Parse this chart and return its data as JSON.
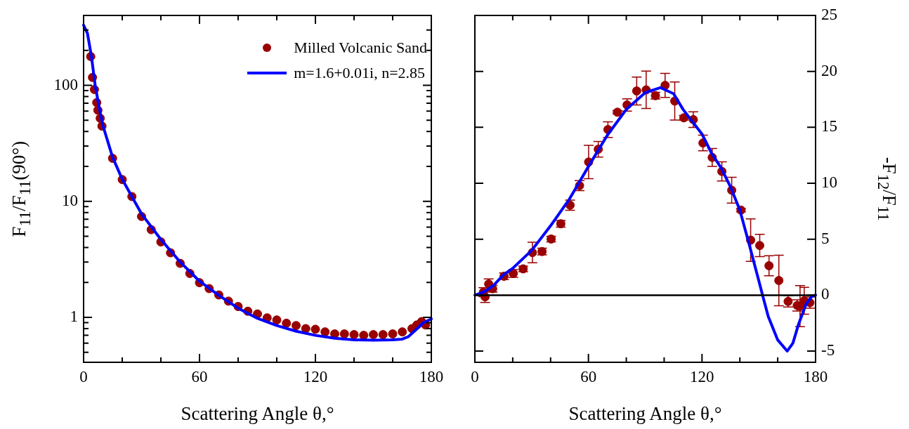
{
  "chart_data": [
    {
      "type": "scatter",
      "xlabel": "Scattering Angle θ,°",
      "ylabel": "F$_{11}$/F$_{11}$(90°)",
      "log": "y",
      "legend": "top right",
      "grid": false,
      "xlim": [
        0,
        180
      ],
      "xticks": [
        0,
        {
          "value": 20,
          "label": null
        },
        {
          "value": 40,
          "label": null
        },
        60,
        {
          "value": 80,
          "label": null
        },
        {
          "value": 100,
          "label": null
        },
        120,
        {
          "value": 140,
          "label": null
        },
        {
          "value": 160,
          "label": null
        },
        180
      ],
      "ylim": [
        0.41,
        400
      ],
      "yticks": [
        {
          "value": 0.5,
          "label": null
        },
        {
          "value": 0.6,
          "label": null
        },
        {
          "value": 0.7,
          "label": null
        },
        {
          "value": 0.8,
          "label": null
        },
        {
          "value": 0.9,
          "label": null
        },
        1,
        {
          "value": 2,
          "label": null
        },
        {
          "value": 3,
          "label": null
        },
        {
          "value": 4,
          "label": null
        },
        {
          "value": 5,
          "label": null
        },
        {
          "value": 6,
          "label": null
        },
        {
          "value": 7,
          "label": null
        },
        {
          "value": 8,
          "label": null
        },
        {
          "value": 9,
          "label": null
        },
        10,
        {
          "value": 20,
          "label": null
        },
        {
          "value": 30,
          "label": null
        },
        {
          "value": 40,
          "label": null
        },
        {
          "value": 50,
          "label": null
        },
        {
          "value": 60,
          "label": null
        },
        {
          "value": 70,
          "label": null
        },
        {
          "value": 80,
          "label": null
        },
        {
          "value": 90,
          "label": null
        },
        100,
        {
          "value": 200,
          "label": null
        },
        {
          "value": 300,
          "label": null
        }
      ],
      "series": [
        {
          "name": "Milled Volcanic Sand",
          "marker": "circle",
          "color": "#990000",
          "x": [
            3.7,
            4.6,
            5.6,
            6.8,
            7.4,
            8.6,
            9.5,
            15,
            20,
            25,
            30,
            35,
            40,
            45,
            50,
            55,
            60,
            65,
            70,
            75,
            80,
            85,
            90,
            95,
            100,
            105,
            110,
            115,
            120,
            125,
            130,
            135,
            140,
            145,
            150,
            155,
            160,
            165,
            170,
            172.5,
            175,
            177
          ],
          "values": [
            177,
            117,
            92,
            71,
            61,
            52,
            44.5,
            23.5,
            15.4,
            11.0,
            7.4,
            5.7,
            4.47,
            3.6,
            2.92,
            2.39,
            1.99,
            1.77,
            1.56,
            1.38,
            1.24,
            1.13,
            1.07,
            0.99,
            0.95,
            0.89,
            0.85,
            0.8,
            0.79,
            0.75,
            0.72,
            0.72,
            0.71,
            0.7,
            0.71,
            0.71,
            0.72,
            0.75,
            0.8,
            0.86,
            0.92,
            0.86
          ]
        },
        {
          "name": "m=1.6+0.01i, n=2.85",
          "type": "line",
          "color": "#0000ff",
          "x": [
            0,
            2,
            4,
            6,
            8,
            10,
            15,
            20,
            25,
            30,
            40,
            50,
            60,
            70,
            80,
            90,
            100,
            110,
            120,
            130,
            140,
            150,
            160,
            165,
            168,
            172,
            176,
            180
          ],
          "values": [
            330,
            280,
            180,
            100,
            65,
            45,
            24,
            15.5,
            11,
            7.8,
            4.7,
            3.0,
            2.05,
            1.55,
            1.2,
            0.98,
            0.85,
            0.76,
            0.7,
            0.66,
            0.64,
            0.635,
            0.64,
            0.65,
            0.68,
            0.78,
            0.9,
            0.97
          ]
        }
      ]
    },
    {
      "type": "scatter",
      "xlabel": "Scattering Angle θ,°",
      "y2label": "-F$_{12}$/F$_{11}$",
      "grid": false,
      "xlim": [
        0,
        180
      ],
      "xticks": [
        0,
        {
          "value": 20,
          "label": null
        },
        {
          "value": 40,
          "label": null
        },
        60,
        {
          "value": 80,
          "label": null
        },
        {
          "value": 100,
          "label": null
        },
        120,
        {
          "value": 140,
          "label": null
        },
        {
          "value": 160,
          "label": null
        },
        180
      ],
      "y2lim": [
        -6,
        25
      ],
      "y2ticks": [
        -5,
        0,
        5,
        10,
        15,
        20,
        25
      ],
      "ref_lines": [
        {
          "axis": "y2",
          "value": 0,
          "color": "#000000"
        }
      ],
      "series": [
        {
          "axis": "y2",
          "marker": "circle",
          "color": "#990000",
          "x": [
            4.5,
            5.4,
            7.3,
            9.4,
            15.4,
            20.3,
            25.5,
            30.4,
            35.5,
            40.3,
            45.4,
            50.3,
            55.3,
            60.1,
            65.2,
            70.3,
            75.3,
            80.4,
            85.5,
            90.5,
            95.4,
            100.5,
            105.6,
            110.4,
            115.4,
            120.5,
            125.4,
            130.5,
            135.7,
            140.6,
            145.7,
            150.5,
            155.4,
            160.6,
            165.5,
            170.3,
            171.8,
            174,
            177
          ],
          "values": [
            0.27,
            -0.15,
            1.0,
            0.58,
            1.69,
            1.94,
            2.35,
            3.81,
            3.9,
            5.02,
            6.38,
            8.04,
            9.79,
            11.9,
            13.04,
            14.8,
            16.35,
            17.0,
            18.25,
            18.35,
            17.83,
            18.75,
            17.35,
            15.85,
            15.69,
            13.6,
            12.31,
            11.06,
            9.38,
            7.6,
            4.92,
            4.44,
            2.63,
            1.31,
            -0.56,
            -0.92,
            -0.98,
            -0.5,
            -0.67
          ],
          "errors": [
            0.4,
            0.5,
            0.45,
            0.3,
            0.3,
            0.35,
            0.25,
            0.92,
            0.3,
            0.25,
            0.3,
            0.45,
            0.45,
            1.49,
            0.7,
            0.7,
            0.15,
            0.55,
            1.25,
            1.67,
            0.3,
            1.07,
            1.7,
            0.2,
            0.7,
            0.7,
            0.8,
            0.85,
            1.15,
            0.15,
            1.9,
            1.0,
            0.9,
            2.26,
            0.5,
            0.5,
            1.84,
            1.2,
            0.5
          ]
        },
        {
          "type": "line",
          "axis": "y2",
          "color": "#0000ff",
          "x": [
            0,
            5,
            10,
            15,
            20,
            30,
            40,
            50,
            60,
            70,
            80,
            90,
            98,
            105,
            110,
            115,
            120,
            125,
            130,
            135,
            140,
            145,
            150,
            152,
            155,
            160,
            165,
            168,
            171,
            175,
            178,
            180
          ],
          "values": [
            0,
            0.3,
            0.9,
            1.8,
            2.4,
            4.0,
            6.2,
            8.6,
            11.5,
            14.3,
            16.6,
            18.1,
            18.55,
            18.0,
            16.6,
            15.5,
            14.4,
            12.7,
            11.4,
            9.7,
            7.6,
            4.5,
            1.3,
            0,
            -1.9,
            -4.0,
            -5.0,
            -4.3,
            -2.6,
            -0.8,
            -0.1,
            0
          ]
        }
      ]
    }
  ]
}
